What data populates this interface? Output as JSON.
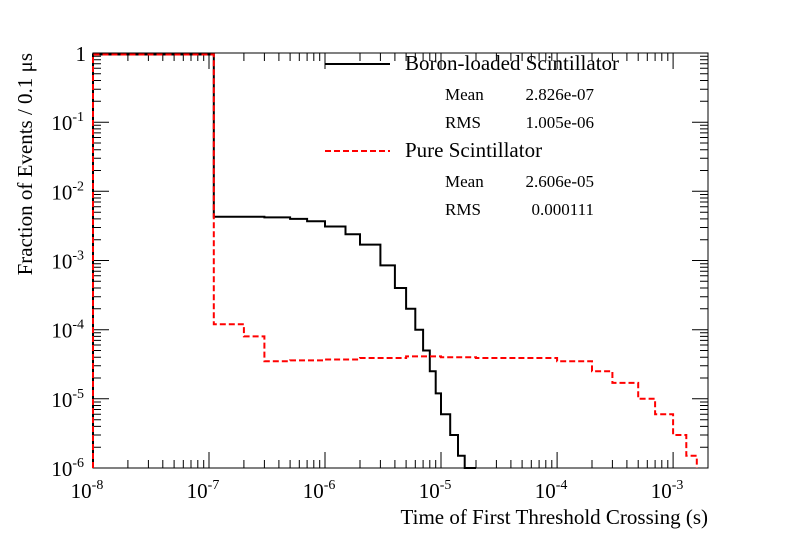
{
  "chart_data": {
    "type": "line",
    "x_scale": "log",
    "y_scale": "log",
    "xlim": [
      1e-08,
      0.002
    ],
    "ylim": [
      1e-06,
      1
    ],
    "xlabel": "Time of First Threshold Crossing (s)",
    "ylabel": "Fraction of Events / 0.1 μs",
    "x_ticks": [
      {
        "base": "10",
        "exp": "-8",
        "value": 1e-08
      },
      {
        "base": "10",
        "exp": "-7",
        "value": 1e-07
      },
      {
        "base": "10",
        "exp": "-6",
        "value": 1e-06
      },
      {
        "base": "10",
        "exp": "-5",
        "value": 1e-05
      },
      {
        "base": "10",
        "exp": "-4",
        "value": 0.0001
      },
      {
        "base": "10",
        "exp": "-3",
        "value": 0.001
      }
    ],
    "y_ticks": [
      {
        "base": "1",
        "exp": "",
        "value": 1
      },
      {
        "base": "10",
        "exp": "-1",
        "value": 0.1
      },
      {
        "base": "10",
        "exp": "-2",
        "value": 0.01
      },
      {
        "base": "10",
        "exp": "-3",
        "value": 0.001
      },
      {
        "base": "10",
        "exp": "-4",
        "value": 0.0001
      },
      {
        "base": "10",
        "exp": "-5",
        "value": 1e-05
      },
      {
        "base": "10",
        "exp": "-6",
        "value": 1e-06
      }
    ],
    "legend_position": "top-right",
    "series": [
      {
        "name": "Boron-loaded Scintillator",
        "color": "#000000",
        "dash": "solid",
        "stats": [
          {
            "label": "Mean",
            "value": "2.826e-07"
          },
          {
            "label": "RMS",
            "value": "1.005e-06"
          }
        ],
        "x": [
          1e-08,
          1e-07,
          1.1e-07,
          2e-07,
          3e-07,
          5e-07,
          7e-07,
          1e-06,
          1.5e-06,
          2e-06,
          3e-06,
          4e-06,
          5e-06,
          6e-06,
          7e-06,
          8e-06,
          9e-06,
          1e-05,
          1.2e-05,
          1.4e-05,
          1.6e-05,
          1.8e-05,
          2e-05
        ],
        "y": [
          0.95,
          0.95,
          0.0043,
          0.0043,
          0.0042,
          0.004,
          0.0037,
          0.0031,
          0.0024,
          0.0017,
          0.00085,
          0.0004,
          0.0002,
          0.0001,
          5e-05,
          2.5e-05,
          1.2e-05,
          6e-06,
          3e-06,
          1.5e-06,
          1e-06,
          1e-06,
          1e-06
        ]
      },
      {
        "name": "Pure Scintillator",
        "color": "#ff0000",
        "dash": "dashed",
        "stats": [
          {
            "label": "Mean",
            "value": "2.606e-05"
          },
          {
            "label": "RMS",
            "value": "0.000111"
          }
        ],
        "x": [
          1e-08,
          1e-07,
          1.1e-07,
          1.5e-07,
          2e-07,
          3e-07,
          5e-07,
          1e-06,
          2e-06,
          5e-06,
          1e-05,
          2e-05,
          5e-05,
          0.0001,
          0.0002,
          0.0003,
          0.0005,
          0.0007,
          0.001,
          0.0013,
          0.0016
        ],
        "y": [
          0.95,
          0.95,
          0.00012,
          0.00012,
          8e-05,
          3.5e-05,
          3.6e-05,
          3.7e-05,
          3.9e-05,
          4.1e-05,
          4e-05,
          3.9e-05,
          3.9e-05,
          3.5e-05,
          2.5e-05,
          1.7e-05,
          1e-05,
          6e-06,
          3e-06,
          1.5e-06,
          1e-06
        ]
      }
    ]
  }
}
